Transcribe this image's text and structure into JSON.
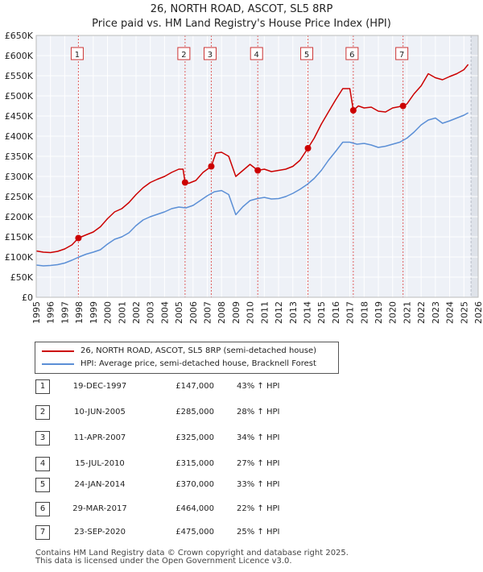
{
  "chart_data": {
    "type": "line",
    "title": "26, NORTH ROAD, ASCOT, SL5 8RP",
    "subtitle": "Price paid vs. HM Land Registry's House Price Index (HPI)",
    "xlabel": "",
    "ylabel": "",
    "xlim": [
      1995,
      2026
    ],
    "ylim": [
      0,
      650000
    ],
    "x_ticks": [
      "1995",
      "1996",
      "1997",
      "1998",
      "1999",
      "2000",
      "2001",
      "2002",
      "2003",
      "2004",
      "2005",
      "2006",
      "2007",
      "2008",
      "2009",
      "2010",
      "2011",
      "2012",
      "2013",
      "2014",
      "2015",
      "2016",
      "2017",
      "2018",
      "2019",
      "2020",
      "2021",
      "2022",
      "2023",
      "2024",
      "2025",
      "2026"
    ],
    "y_ticks": [
      {
        "value": 0,
        "label": "£0"
      },
      {
        "value": 50000,
        "label": "£50K"
      },
      {
        "value": 100000,
        "label": "£100K"
      },
      {
        "value": 150000,
        "label": "£150K"
      },
      {
        "value": 200000,
        "label": "£200K"
      },
      {
        "value": 250000,
        "label": "£250K"
      },
      {
        "value": 300000,
        "label": "£300K"
      },
      {
        "value": 350000,
        "label": "£350K"
      },
      {
        "value": 400000,
        "label": "£400K"
      },
      {
        "value": 450000,
        "label": "£450K"
      },
      {
        "value": 500000,
        "label": "£500K"
      },
      {
        "value": 550000,
        "label": "£550K"
      },
      {
        "value": 600000,
        "label": "£600K"
      },
      {
        "value": 650000,
        "label": "£650K"
      }
    ],
    "grid": true,
    "series": [
      {
        "name": "26, NORTH ROAD, ASCOT, SL5 8RP (semi-detached house)",
        "color": "#cc0000",
        "points": [
          [
            1995.0,
            115000
          ],
          [
            1995.5,
            112000
          ],
          [
            1996.0,
            111000
          ],
          [
            1996.5,
            114000
          ],
          [
            1997.0,
            120000
          ],
          [
            1997.5,
            130000
          ],
          [
            1997.96,
            147000
          ],
          [
            1998.5,
            155000
          ],
          [
            1999.0,
            162000
          ],
          [
            1999.5,
            175000
          ],
          [
            2000.0,
            195000
          ],
          [
            2000.5,
            212000
          ],
          [
            2001.0,
            220000
          ],
          [
            2001.5,
            235000
          ],
          [
            2002.0,
            255000
          ],
          [
            2002.5,
            272000
          ],
          [
            2003.0,
            285000
          ],
          [
            2003.5,
            293000
          ],
          [
            2004.0,
            300000
          ],
          [
            2004.5,
            310000
          ],
          [
            2005.0,
            318000
          ],
          [
            2005.3,
            318000
          ],
          [
            2005.44,
            285000
          ],
          [
            2005.7,
            283000
          ],
          [
            2006.2,
            290000
          ],
          [
            2006.7,
            310000
          ],
          [
            2007.28,
            325000
          ],
          [
            2007.6,
            358000
          ],
          [
            2008.0,
            360000
          ],
          [
            2008.5,
            350000
          ],
          [
            2009.0,
            300000
          ],
          [
            2009.5,
            315000
          ],
          [
            2010.0,
            330000
          ],
          [
            2010.54,
            315000
          ],
          [
            2011.0,
            318000
          ],
          [
            2011.5,
            312000
          ],
          [
            2012.0,
            315000
          ],
          [
            2012.5,
            318000
          ],
          [
            2013.0,
            325000
          ],
          [
            2013.5,
            340000
          ],
          [
            2014.06,
            370000
          ],
          [
            2014.5,
            395000
          ],
          [
            2015.0,
            430000
          ],
          [
            2015.5,
            460000
          ],
          [
            2016.0,
            490000
          ],
          [
            2016.5,
            518000
          ],
          [
            2017.0,
            518000
          ],
          [
            2017.24,
            464000
          ],
          [
            2017.6,
            475000
          ],
          [
            2018.0,
            470000
          ],
          [
            2018.5,
            472000
          ],
          [
            2019.0,
            462000
          ],
          [
            2019.5,
            460000
          ],
          [
            2020.0,
            470000
          ],
          [
            2020.73,
            475000
          ],
          [
            2021.0,
            480000
          ],
          [
            2021.5,
            505000
          ],
          [
            2022.0,
            525000
          ],
          [
            2022.5,
            555000
          ],
          [
            2023.0,
            545000
          ],
          [
            2023.5,
            540000
          ],
          [
            2024.0,
            548000
          ],
          [
            2024.5,
            555000
          ],
          [
            2025.0,
            565000
          ],
          [
            2025.3,
            578000
          ]
        ]
      },
      {
        "name": "HPI: Average price, semi-detached house, Bracknell Forest",
        "color": "#5b8fd6",
        "points": [
          [
            1995.0,
            80000
          ],
          [
            1995.5,
            78000
          ],
          [
            1996.0,
            79000
          ],
          [
            1996.5,
            81000
          ],
          [
            1997.0,
            85000
          ],
          [
            1997.5,
            92000
          ],
          [
            1998.0,
            100000
          ],
          [
            1998.5,
            107000
          ],
          [
            1999.0,
            112000
          ],
          [
            1999.5,
            118000
          ],
          [
            2000.0,
            132000
          ],
          [
            2000.5,
            144000
          ],
          [
            2001.0,
            150000
          ],
          [
            2001.5,
            160000
          ],
          [
            2002.0,
            178000
          ],
          [
            2002.5,
            192000
          ],
          [
            2003.0,
            200000
          ],
          [
            2003.5,
            206000
          ],
          [
            2004.0,
            212000
          ],
          [
            2004.5,
            220000
          ],
          [
            2005.0,
            224000
          ],
          [
            2005.5,
            222000
          ],
          [
            2006.0,
            228000
          ],
          [
            2006.5,
            240000
          ],
          [
            2007.0,
            252000
          ],
          [
            2007.5,
            262000
          ],
          [
            2008.0,
            265000
          ],
          [
            2008.5,
            255000
          ],
          [
            2009.0,
            205000
          ],
          [
            2009.5,
            225000
          ],
          [
            2010.0,
            240000
          ],
          [
            2010.5,
            245000
          ],
          [
            2011.0,
            248000
          ],
          [
            2011.5,
            244000
          ],
          [
            2012.0,
            245000
          ],
          [
            2012.5,
            250000
          ],
          [
            2013.0,
            258000
          ],
          [
            2013.5,
            268000
          ],
          [
            2014.0,
            280000
          ],
          [
            2014.5,
            295000
          ],
          [
            2015.0,
            315000
          ],
          [
            2015.5,
            340000
          ],
          [
            2016.0,
            362000
          ],
          [
            2016.5,
            385000
          ],
          [
            2017.0,
            385000
          ],
          [
            2017.5,
            380000
          ],
          [
            2018.0,
            382000
          ],
          [
            2018.5,
            378000
          ],
          [
            2019.0,
            372000
          ],
          [
            2019.5,
            375000
          ],
          [
            2020.0,
            380000
          ],
          [
            2020.5,
            385000
          ],
          [
            2021.0,
            395000
          ],
          [
            2021.5,
            410000
          ],
          [
            2022.0,
            428000
          ],
          [
            2022.5,
            440000
          ],
          [
            2023.0,
            445000
          ],
          [
            2023.5,
            432000
          ],
          [
            2024.0,
            438000
          ],
          [
            2024.5,
            445000
          ],
          [
            2025.0,
            452000
          ],
          [
            2025.3,
            458000
          ]
        ]
      }
    ],
    "sales": [
      {
        "id": "1",
        "x": 1997.96,
        "price": 147000
      },
      {
        "id": "2",
        "x": 2005.44,
        "price": 285000
      },
      {
        "id": "3",
        "x": 2007.28,
        "price": 325000
      },
      {
        "id": "4",
        "x": 2010.54,
        "price": 315000
      },
      {
        "id": "5",
        "x": 2014.06,
        "price": 370000
      },
      {
        "id": "6",
        "x": 2017.24,
        "price": 464000
      },
      {
        "id": "7",
        "x": 2020.73,
        "price": 475000
      }
    ],
    "forecast_from": 2025.5
  },
  "legend": {
    "property_label": "26, NORTH ROAD, ASCOT, SL5 8RP (semi-detached house)",
    "hpi_label": "HPI: Average price, semi-detached house, Bracknell Forest"
  },
  "table": {
    "rows": [
      {
        "id": "1",
        "date": "19-DEC-1997",
        "price": "£147,000",
        "hpi": "43% ↑ HPI"
      },
      {
        "id": "2",
        "date": "10-JUN-2005",
        "price": "£285,000",
        "hpi": "28% ↑ HPI"
      },
      {
        "id": "3",
        "date": "11-APR-2007",
        "price": "£325,000",
        "hpi": "34% ↑ HPI"
      },
      {
        "id": "4",
        "date": "15-JUL-2010",
        "price": "£315,000",
        "hpi": "27% ↑ HPI"
      },
      {
        "id": "5",
        "date": "24-JAN-2014",
        "price": "£370,000",
        "hpi": "33% ↑ HPI"
      },
      {
        "id": "6",
        "date": "29-MAR-2017",
        "price": "£464,000",
        "hpi": "22% ↑ HPI"
      },
      {
        "id": "7",
        "date": "23-SEP-2020",
        "price": "£475,000",
        "hpi": "25% ↑ HPI"
      }
    ]
  },
  "footer": {
    "line1": "Contains HM Land Registry data © Crown copyright and database right 2025.",
    "line2": "This data is licensed under the Open Government Licence v3.0."
  }
}
